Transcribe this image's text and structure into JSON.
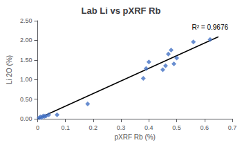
{
  "chart_data": {
    "type": "scatter",
    "title": "Lab Li vs pXRF Rb",
    "xlabel": "pXRF Rb (%)",
    "ylabel": "Li 2O (%)",
    "annotation": "R² = 0.9676",
    "xlim": [
      0,
      0.7
    ],
    "ylim": [
      0,
      2.5
    ],
    "xticks": [
      0,
      0.1,
      0.2,
      0.3,
      0.4,
      0.5,
      0.6,
      0.7
    ],
    "yticks": [
      {
        "value": 0,
        "label": "0.00"
      },
      {
        "value": 0.5,
        "label": "0.50"
      },
      {
        "value": 1,
        "label": "1.00"
      },
      {
        "value": 1.5,
        "label": "1.50"
      },
      {
        "value": 2,
        "label": "2.00"
      },
      {
        "value": 2.5,
        "label": "2.50"
      }
    ],
    "grid": false,
    "series": [
      {
        "type": "scatter",
        "marker": "diamond",
        "color": "#4472C4",
        "x": [
          0.005,
          0.01,
          0.015,
          0.02,
          0.025,
          0.03,
          0.04,
          0.07,
          0.18,
          0.38,
          0.39,
          0.4,
          0.45,
          0.46,
          0.47,
          0.48,
          0.49,
          0.5,
          0.56,
          0.62
        ],
        "values": [
          0.02,
          0.05,
          0.03,
          0.07,
          0.06,
          0.07,
          0.1,
          0.1,
          0.38,
          1.03,
          1.28,
          1.45,
          1.25,
          1.35,
          1.65,
          1.75,
          1.4,
          1.55,
          1.96,
          2.02
        ]
      },
      {
        "type": "line",
        "color": "#000000",
        "x": [
          0,
          0.65
        ],
        "values": [
          0,
          2.09
        ]
      }
    ]
  }
}
